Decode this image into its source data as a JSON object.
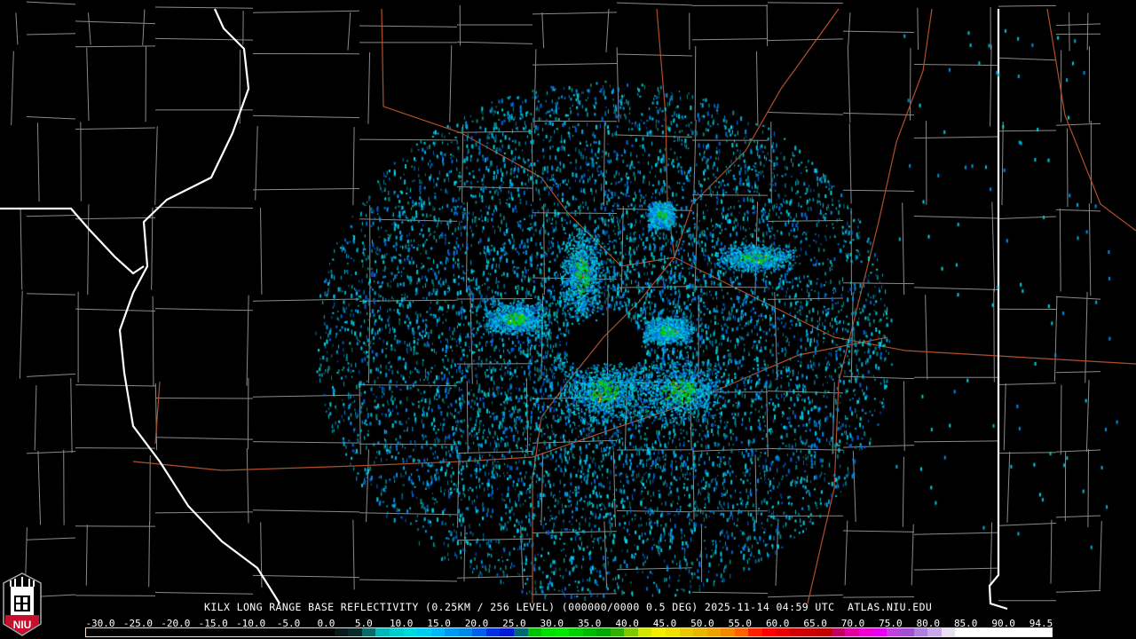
{
  "product": {
    "caption": "KILX LONG RANGE BASE REFLECTIVITY (0.25KM / 256 LEVEL) (000000/0000 0.5 DEG) 2025-11-14 04:59 UTC  ATLAS.NIU.EDU",
    "radar_site": "KILX",
    "timestamp": "2025-11-14 04:59 UTC",
    "elevation": "0.5 DEG",
    "source": "ATLAS.NIU.EDU"
  },
  "logo": {
    "text": "NIU",
    "colors": {
      "red": "#c8102e",
      "white": "#ffffff",
      "black": "#000000"
    }
  },
  "colorbar": {
    "min": -30.0,
    "max": 94.5,
    "labels": [
      "-30.0",
      "-25.0",
      "-20.0",
      "-15.0",
      "-10.0",
      "-5.0",
      "0.0",
      "5.0",
      "10.0",
      "15.0",
      "20.0",
      "25.0",
      "30.0",
      "35.0",
      "40.0",
      "45.0",
      "50.0",
      "55.0",
      "60.0",
      "65.0",
      "70.0",
      "75.0",
      "80.0",
      "85.0",
      "90.0",
      "94.5"
    ],
    "colors": [
      "#000000",
      "#000000",
      "#000000",
      "#000000",
      "#000000",
      "#000000",
      "#000000",
      "#000000",
      "#000000",
      "#000000",
      "#000000",
      "#000000",
      "#000000",
      "#000000",
      "#000000",
      "#000000",
      "#000000",
      "#000000",
      "#0a1a1a",
      "#0a2a2a",
      "#0b6b6b",
      "#00b8b8",
      "#00cccc",
      "#00d8e0",
      "#00ccf0",
      "#00b8f8",
      "#0098f0",
      "#0088e8",
      "#0060e8",
      "#0030e0",
      "#0018d8",
      "#006870",
      "#00c000",
      "#00e000",
      "#00e800",
      "#00d000",
      "#00b800",
      "#00a800",
      "#30b000",
      "#80c800",
      "#d0e800",
      "#f0f000",
      "#f0e000",
      "#e8c800",
      "#e8b800",
      "#f0a000",
      "#f08800",
      "#ff6000",
      "#ff2000",
      "#ff0000",
      "#e80000",
      "#d00000",
      "#c80000",
      "#c00000",
      "#c00060",
      "#e000a0",
      "#f000d0",
      "#e800f0",
      "#c040e0",
      "#a050d0",
      "#b080e0",
      "#c8a8e8",
      "#e8e0f0",
      "#ffffff",
      "#ffffff",
      "#ffffff",
      "#ffffff",
      "#ffffff",
      "#ffffff",
      "#ffffff"
    ]
  },
  "map": {
    "background": "#000000",
    "state_border_color": "#ffffff",
    "county_border_color": "#8a8a8a",
    "highway_color": "#b0502a"
  }
}
